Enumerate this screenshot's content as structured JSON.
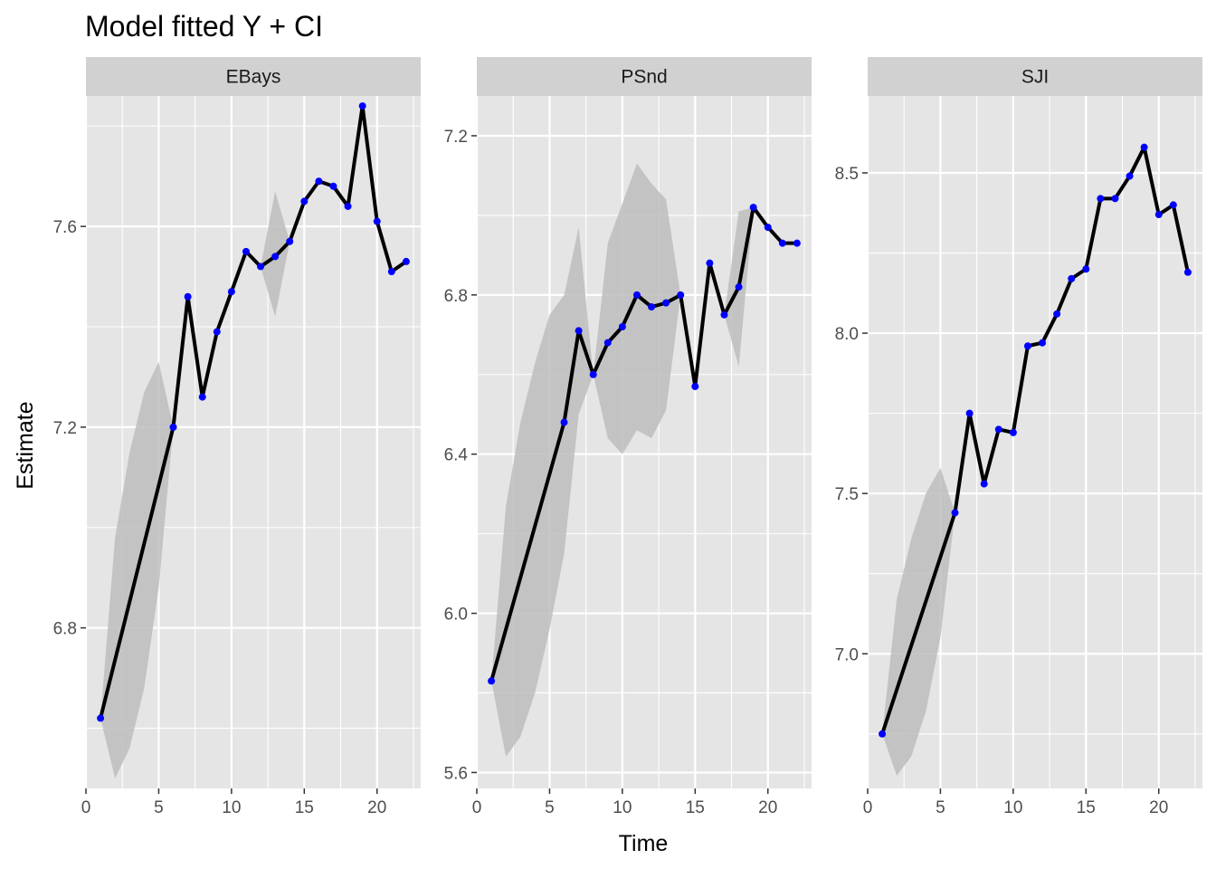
{
  "title": "Model fitted Y + CI",
  "chart_data": {
    "type": "line",
    "title": "Model fitted Y + CI",
    "xlabel": "Time",
    "ylabel": "Estimate",
    "colors": {
      "line": "#000000",
      "point": "#0000ff",
      "ribbon": "#bdbdbd",
      "panel_bg": "#e5e5e5",
      "strip_bg": "#d1d1d1",
      "grid": "#ffffff"
    },
    "panels": [
      {
        "name": "EBays",
        "xlim": [
          0,
          23
        ],
        "ylim": [
          6.48,
          7.86
        ],
        "xticks": [
          0,
          5,
          10,
          15,
          20
        ],
        "yticks": [
          6.8,
          7.2,
          7.6
        ],
        "ytick_labels": [
          "6.8",
          "7.2",
          "7.6"
        ],
        "points": [
          [
            1,
            6.62
          ],
          [
            6,
            7.2
          ],
          [
            7,
            7.46
          ],
          [
            8,
            7.26
          ],
          [
            9,
            7.39
          ],
          [
            10,
            7.47
          ],
          [
            11,
            7.55
          ],
          [
            12,
            7.52
          ],
          [
            13,
            7.54
          ],
          [
            14,
            7.57
          ],
          [
            15,
            7.65
          ],
          [
            16,
            7.69
          ],
          [
            17,
            7.68
          ],
          [
            18,
            7.64
          ],
          [
            19,
            7.84
          ],
          [
            20,
            7.61
          ],
          [
            21,
            7.51
          ],
          [
            22,
            7.53
          ]
        ],
        "ribbons": [
          {
            "x": [
              1,
              2,
              3,
              4,
              5,
              6
            ],
            "lower": [
              6.62,
              6.5,
              6.56,
              6.68,
              6.88,
              7.2
            ],
            "upper": [
              6.62,
              6.98,
              7.15,
              7.27,
              7.33,
              7.2
            ]
          },
          {
            "x": [
              12,
              13,
              14
            ],
            "lower": [
              7.52,
              7.42,
              7.57
            ],
            "upper": [
              7.52,
              7.67,
              7.57
            ]
          }
        ]
      },
      {
        "name": "PSnd",
        "xlim": [
          0,
          23
        ],
        "ylim": [
          5.56,
          7.3
        ],
        "xticks": [
          0,
          5,
          10,
          15,
          20
        ],
        "yticks": [
          5.6,
          6.0,
          6.4,
          6.8,
          7.2
        ],
        "ytick_labels": [
          "5.6",
          "6.0",
          "6.4",
          "6.8",
          "7.2"
        ],
        "points": [
          [
            1,
            5.83
          ],
          [
            6,
            6.48
          ],
          [
            7,
            6.71
          ],
          [
            8,
            6.6
          ],
          [
            9,
            6.68
          ],
          [
            10,
            6.72
          ],
          [
            11,
            6.8
          ],
          [
            12,
            6.77
          ],
          [
            13,
            6.78
          ],
          [
            14,
            6.8
          ],
          [
            15,
            6.57
          ],
          [
            16,
            6.88
          ],
          [
            17,
            6.75
          ],
          [
            18,
            6.82
          ],
          [
            19,
            7.02
          ],
          [
            20,
            6.97
          ],
          [
            21,
            6.93
          ],
          [
            22,
            6.93
          ]
        ],
        "ribbons": [
          {
            "x": [
              1,
              2,
              3,
              4,
              5,
              6,
              7,
              8,
              9,
              10,
              11,
              12,
              13,
              14,
              15
            ],
            "lower": [
              5.83,
              5.64,
              5.69,
              5.8,
              5.96,
              6.15,
              6.5,
              6.6,
              6.44,
              6.4,
              6.46,
              6.44,
              6.51,
              6.8,
              6.57
            ],
            "upper": [
              5.83,
              6.27,
              6.48,
              6.63,
              6.75,
              6.8,
              6.97,
              6.6,
              6.93,
              7.03,
              7.13,
              7.08,
              7.04,
              6.8,
              6.57
            ]
          },
          {
            "x": [
              17,
              18,
              19
            ],
            "lower": [
              6.75,
              6.62,
              7.02
            ],
            "upper": [
              6.75,
              7.01,
              7.02
            ]
          }
        ]
      },
      {
        "name": "SJI",
        "xlim": [
          0,
          23
        ],
        "ylim": [
          6.58,
          8.74
        ],
        "xticks": [
          0,
          5,
          10,
          15,
          20
        ],
        "yticks": [
          7.0,
          7.5,
          8.0,
          8.5
        ],
        "ytick_labels": [
          "7.0",
          "7.5",
          "8.0",
          "8.5"
        ],
        "points": [
          [
            1,
            6.75
          ],
          [
            6,
            7.44
          ],
          [
            7,
            7.75
          ],
          [
            8,
            7.53
          ],
          [
            9,
            7.7
          ],
          [
            10,
            7.69
          ],
          [
            11,
            7.96
          ],
          [
            12,
            7.97
          ],
          [
            13,
            8.06
          ],
          [
            14,
            8.17
          ],
          [
            15,
            8.2
          ],
          [
            16,
            8.42
          ],
          [
            17,
            8.42
          ],
          [
            18,
            8.49
          ],
          [
            19,
            8.58
          ],
          [
            20,
            8.37
          ],
          [
            21,
            8.4
          ],
          [
            22,
            8.19
          ]
        ],
        "ribbons": [
          {
            "x": [
              1,
              2,
              3,
              4,
              5,
              6
            ],
            "lower": [
              6.75,
              6.62,
              6.68,
              6.82,
              7.05,
              7.44
            ],
            "upper": [
              6.75,
              7.17,
              7.36,
              7.5,
              7.58,
              7.44
            ]
          }
        ]
      }
    ]
  }
}
